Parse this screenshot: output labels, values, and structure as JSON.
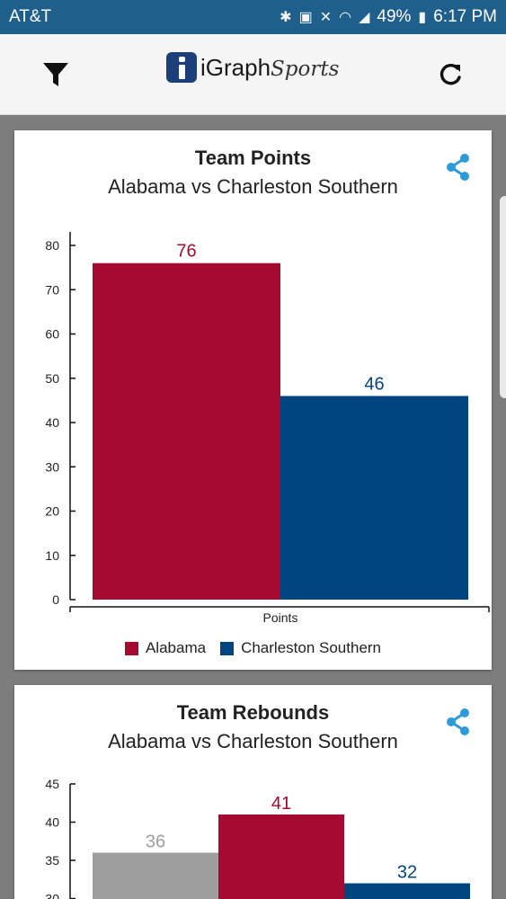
{
  "status": {
    "carrier": "AT&T",
    "battery": "49%",
    "time": "6:17 PM"
  },
  "app_bar": {
    "logo_main": "iGraph",
    "logo_sub": "Sports"
  },
  "cards": [
    {
      "title": "Team Points",
      "subtitle": "Alabama vs Charleston Southern"
    },
    {
      "title": "Team Rebounds",
      "subtitle": "Alabama vs Charleston Southern"
    }
  ],
  "chart_data": [
    {
      "type": "bar",
      "title": "Team Points",
      "subtitle": "Alabama vs Charleston Southern",
      "categories": [
        "Points"
      ],
      "series": [
        {
          "name": "Alabama",
          "values": [
            76
          ],
          "color": "#a50a30"
        },
        {
          "name": "Charleston Southern",
          "values": [
            46
          ],
          "color": "#004480"
        }
      ],
      "ylim": [
        0,
        80
      ],
      "yticks": [
        0,
        10,
        20,
        30,
        40,
        50,
        60,
        70,
        80
      ],
      "legend": "bottom-center",
      "grid": false
    },
    {
      "type": "bar",
      "title": "Team Rebounds",
      "subtitle": "Alabama vs Charleston Southern",
      "categories": [
        ""
      ],
      "series": [
        {
          "values": [
            36
          ],
          "color": "#9e9e9e"
        },
        {
          "name": "Alabama",
          "values": [
            41
          ],
          "color": "#a50a30"
        },
        {
          "name": "Charleston Southern",
          "values": [
            32
          ],
          "color": "#004480"
        }
      ],
      "yticks_visible": [
        30,
        35,
        40,
        45
      ],
      "grid": false
    }
  ]
}
